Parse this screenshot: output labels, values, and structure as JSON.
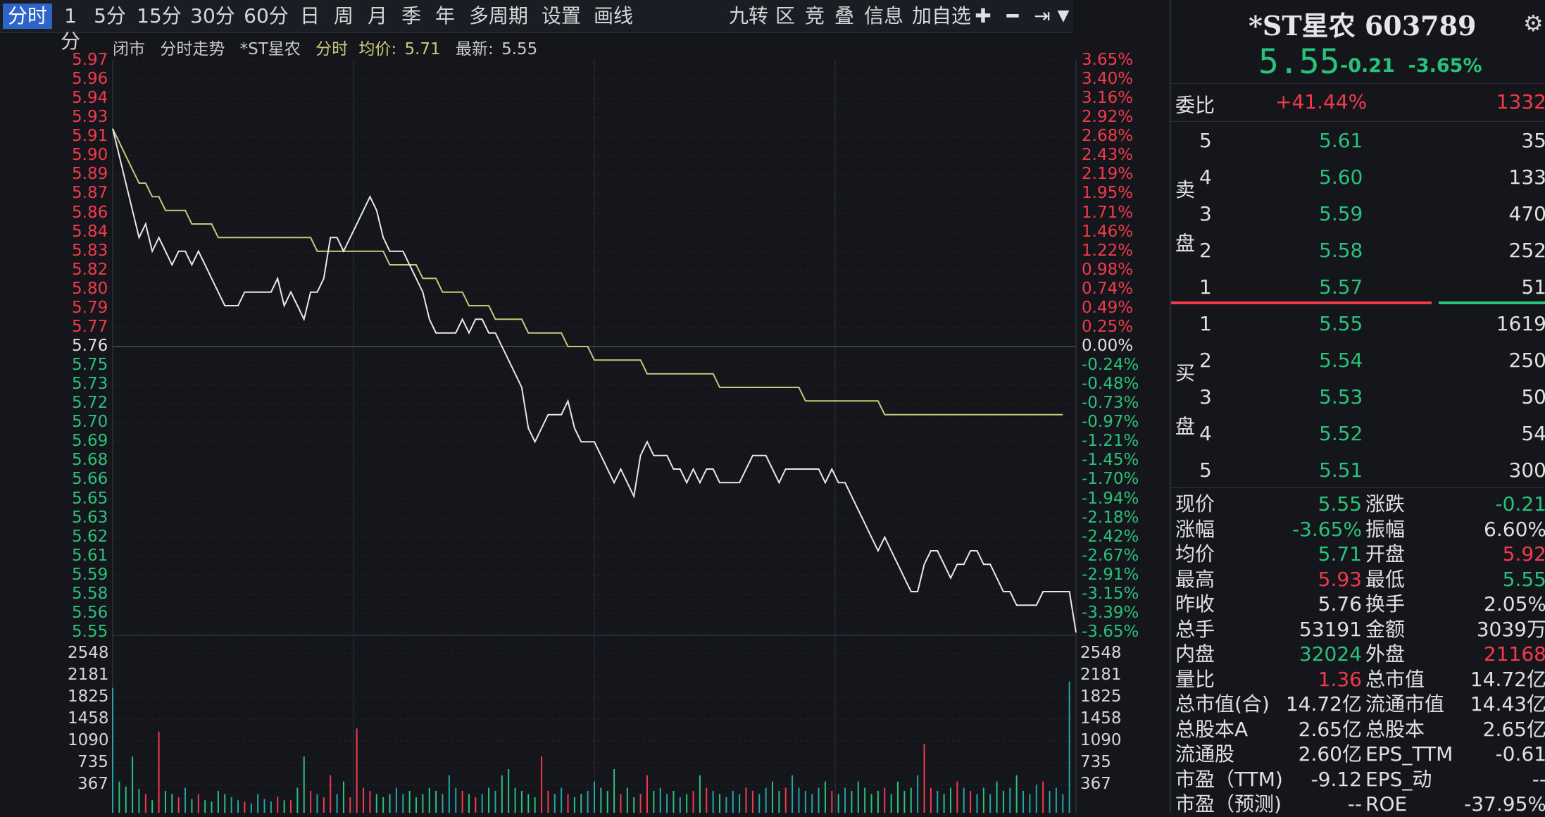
{
  "toolbar": {
    "periods": [
      "分时",
      "1分",
      "5分",
      "15分",
      "30分",
      "60分",
      "日",
      "周",
      "月",
      "季",
      "年",
      "多周期",
      "设置",
      "画线"
    ],
    "active": "分时",
    "tools": [
      "九转",
      "区",
      "竞",
      "叠",
      "信息",
      "加自选"
    ]
  },
  "chart": {
    "status": "闭市",
    "mode_label": "分时走势",
    "stock_label": "*ST星农",
    "type_label": "分时",
    "avg_label": "均价:",
    "avg_value": "5.71",
    "latest_label": "最新:",
    "latest_value": "5.55"
  },
  "chart_data": {
    "type": "line",
    "price_ticks": [
      "5.97",
      "5.96",
      "5.94",
      "5.93",
      "5.91",
      "5.90",
      "5.89",
      "5.87",
      "5.86",
      "5.84",
      "5.83",
      "5.82",
      "5.80",
      "5.79",
      "5.77",
      "5.76",
      "5.75",
      "5.73",
      "5.72",
      "5.70",
      "5.69",
      "5.68",
      "5.66",
      "5.65",
      "5.63",
      "5.62",
      "5.61",
      "5.59",
      "5.58",
      "5.56",
      "5.55"
    ],
    "pct_ticks": [
      "3.65%",
      "3.40%",
      "3.16%",
      "2.92%",
      "2.68%",
      "2.43%",
      "2.19%",
      "1.95%",
      "1.71%",
      "1.46%",
      "1.22%",
      "0.98%",
      "0.74%",
      "0.49%",
      "0.25%",
      "0.00%",
      "-0.24%",
      "-0.48%",
      "-0.73%",
      "-0.97%",
      "-1.21%",
      "-1.45%",
      "-1.70%",
      "-1.94%",
      "-2.18%",
      "-2.42%",
      "-2.67%",
      "-2.91%",
      "-3.15%",
      "-3.39%",
      "-3.65%"
    ],
    "prev_close": 5.76,
    "y_range": [
      5.55,
      5.97
    ],
    "volume_ticks": [
      "2548",
      "2181",
      "1825",
      "1458",
      "1090",
      "735",
      "367"
    ],
    "volume_max": 2548,
    "colors": {
      "up": "#f23a4c",
      "down": "#29c27a",
      "neutral": "#e0e0e0",
      "price_line": "#e8e8e8",
      "avg_line": "#c8c87a",
      "volume": "#1fa7a7"
    },
    "price": [
      5.92,
      5.9,
      5.88,
      5.86,
      5.84,
      5.85,
      5.83,
      5.84,
      5.83,
      5.82,
      5.83,
      5.83,
      5.82,
      5.83,
      5.82,
      5.81,
      5.8,
      5.79,
      5.79,
      5.79,
      5.8,
      5.8,
      5.8,
      5.8,
      5.8,
      5.81,
      5.79,
      5.8,
      5.79,
      5.78,
      5.8,
      5.8,
      5.81,
      5.84,
      5.84,
      5.83,
      5.84,
      5.85,
      5.86,
      5.87,
      5.86,
      5.84,
      5.83,
      5.83,
      5.83,
      5.82,
      5.81,
      5.8,
      5.78,
      5.77,
      5.77,
      5.77,
      5.77,
      5.78,
      5.77,
      5.78,
      5.78,
      5.77,
      5.77,
      5.76,
      5.75,
      5.74,
      5.73,
      5.7,
      5.69,
      5.7,
      5.71,
      5.71,
      5.71,
      5.72,
      5.7,
      5.69,
      5.69,
      5.69,
      5.68,
      5.67,
      5.66,
      5.67,
      5.66,
      5.65,
      5.68,
      5.69,
      5.68,
      5.68,
      5.68,
      5.67,
      5.67,
      5.66,
      5.67,
      5.66,
      5.67,
      5.67,
      5.66,
      5.66,
      5.66,
      5.66,
      5.67,
      5.68,
      5.68,
      5.68,
      5.67,
      5.66,
      5.67,
      5.67,
      5.67,
      5.67,
      5.67,
      5.67,
      5.66,
      5.67,
      5.66,
      5.66,
      5.65,
      5.64,
      5.63,
      5.62,
      5.61,
      5.62,
      5.61,
      5.6,
      5.59,
      5.58,
      5.58,
      5.6,
      5.61,
      5.61,
      5.6,
      5.59,
      5.6,
      5.6,
      5.61,
      5.61,
      5.6,
      5.6,
      5.59,
      5.58,
      5.58,
      5.57,
      5.57,
      5.57,
      5.57,
      5.58,
      5.58,
      5.58,
      5.58,
      5.58,
      5.55
    ],
    "avg": [
      5.92,
      5.91,
      5.9,
      5.89,
      5.88,
      5.88,
      5.87,
      5.87,
      5.86,
      5.86,
      5.86,
      5.86,
      5.85,
      5.85,
      5.85,
      5.85,
      5.84,
      5.84,
      5.84,
      5.84,
      5.84,
      5.84,
      5.84,
      5.84,
      5.84,
      5.84,
      5.84,
      5.84,
      5.84,
      5.84,
      5.84,
      5.83,
      5.83,
      5.83,
      5.83,
      5.83,
      5.83,
      5.83,
      5.83,
      5.83,
      5.83,
      5.83,
      5.82,
      5.82,
      5.82,
      5.82,
      5.82,
      5.81,
      5.81,
      5.81,
      5.8,
      5.8,
      5.8,
      5.8,
      5.79,
      5.79,
      5.79,
      5.79,
      5.78,
      5.78,
      5.78,
      5.78,
      5.78,
      5.77,
      5.77,
      5.77,
      5.77,
      5.77,
      5.77,
      5.76,
      5.76,
      5.76,
      5.76,
      5.75,
      5.75,
      5.75,
      5.75,
      5.75,
      5.75,
      5.75,
      5.75,
      5.74,
      5.74,
      5.74,
      5.74,
      5.74,
      5.74,
      5.74,
      5.74,
      5.74,
      5.74,
      5.74,
      5.73,
      5.73,
      5.73,
      5.73,
      5.73,
      5.73,
      5.73,
      5.73,
      5.73,
      5.73,
      5.73,
      5.73,
      5.73,
      5.72,
      5.72,
      5.72,
      5.72,
      5.72,
      5.72,
      5.72,
      5.72,
      5.72,
      5.72,
      5.72,
      5.72,
      5.71,
      5.71,
      5.71,
      5.71,
      5.71,
      5.71,
      5.71,
      5.71,
      5.71,
      5.71,
      5.71,
      5.71,
      5.71,
      5.71,
      5.71,
      5.71,
      5.71,
      5.71,
      5.71,
      5.71,
      5.71,
      5.71,
      5.71,
      5.71,
      5.71,
      5.71,
      5.71,
      5.71
    ],
    "volume": [
      2000,
      500,
      420,
      900,
      380,
      300,
      200,
      1300,
      350,
      300,
      250,
      400,
      220,
      300,
      200,
      180,
      350,
      300,
      250,
      200,
      180,
      150,
      300,
      220,
      180,
      260,
      200,
      200,
      400,
      900,
      350,
      300,
      250,
      600,
      300,
      500,
      250,
      1350,
      400,
      350,
      300,
      250,
      300,
      400,
      300,
      350,
      250,
      300,
      400,
      350,
      300,
      600,
      400,
      350,
      300,
      250,
      300,
      400,
      350,
      600,
      700,
      400,
      350,
      300,
      250,
      900,
      350,
      300,
      400,
      300,
      250,
      300,
      350,
      500,
      400,
      350,
      700,
      300,
      400,
      250,
      300,
      600,
      350,
      400,
      300,
      350,
      250,
      300,
      350,
      600,
      400,
      350,
      300,
      250,
      350,
      300,
      400,
      350,
      300,
      400,
      500,
      350,
      400,
      600,
      400,
      350,
      300,
      400,
      500,
      350,
      300,
      400,
      350,
      500,
      400,
      300,
      350,
      400,
      300,
      500,
      350,
      400,
      600,
      1100,
      400,
      350,
      300,
      400,
      500,
      400,
      350,
      300,
      400,
      300,
      500,
      350,
      400,
      600,
      350,
      300,
      450,
      500,
      350,
      400,
      300,
      2100
    ]
  },
  "panel": {
    "title": "*ST星农 603789",
    "price": "5.55",
    "change": "-0.21",
    "change_pct": "-3.65%",
    "wb_label": "委比",
    "wb_pct": "+41.44%",
    "wb_vol": "1332",
    "sell_label": [
      "卖",
      "盘"
    ],
    "buy_label": [
      "买",
      "盘"
    ],
    "asks": [
      {
        "lvl": "5",
        "price": "5.61",
        "vol": "35"
      },
      {
        "lvl": "4",
        "price": "5.60",
        "vol": "133"
      },
      {
        "lvl": "3",
        "price": "5.59",
        "vol": "470"
      },
      {
        "lvl": "2",
        "price": "5.58",
        "vol": "252"
      },
      {
        "lvl": "1",
        "price": "5.57",
        "vol": "51"
      }
    ],
    "bids": [
      {
        "lvl": "1",
        "price": "5.55",
        "vol": "1619"
      },
      {
        "lvl": "2",
        "price": "5.54",
        "vol": "250"
      },
      {
        "lvl": "3",
        "price": "5.53",
        "vol": "50"
      },
      {
        "lvl": "4",
        "price": "5.52",
        "vol": "54"
      },
      {
        "lvl": "5",
        "price": "5.51",
        "vol": "300"
      }
    ],
    "stats": [
      {
        "l1": "现价",
        "v1": "5.55",
        "c1": "green",
        "l2": "涨跌",
        "v2": "-0.21",
        "c2": "green"
      },
      {
        "l1": "涨幅",
        "v1": "-3.65%",
        "c1": "green",
        "l2": "振幅",
        "v2": "6.60%",
        "c2": "white"
      },
      {
        "l1": "均价",
        "v1": "5.71",
        "c1": "green",
        "l2": "开盘",
        "v2": "5.92",
        "c2": "red"
      },
      {
        "l1": "最高",
        "v1": "5.93",
        "c1": "red",
        "l2": "最低",
        "v2": "5.55",
        "c2": "green"
      },
      {
        "l1": "昨收",
        "v1": "5.76",
        "c1": "white",
        "l2": "换手",
        "v2": "2.05%",
        "c2": "white"
      },
      {
        "l1": "总手",
        "v1": "53191",
        "c1": "white",
        "l2": "金额",
        "v2": "3039万",
        "c2": "white"
      },
      {
        "l1": "内盘",
        "v1": "32024",
        "c1": "green",
        "l2": "外盘",
        "v2": "21168",
        "c2": "red"
      },
      {
        "l1": "量比",
        "v1": "1.36",
        "c1": "red",
        "l2": "总市值",
        "v2": "14.72亿",
        "c2": "white"
      },
      {
        "l1": "总市值(合)",
        "v1": "14.72亿",
        "c1": "white",
        "l2": "流通市值",
        "v2": "14.43亿",
        "c2": "white"
      },
      {
        "l1": "总股本A",
        "v1": "2.65亿",
        "c1": "white",
        "l2": "总股本",
        "v2": "2.65亿",
        "c2": "white"
      },
      {
        "l1": "流通股",
        "v1": "2.60亿",
        "c1": "white",
        "l2": "EPS_TTM",
        "v2": "-0.61",
        "c2": "white"
      },
      {
        "l1": "市盈（TTM)",
        "v1": "-9.12",
        "c1": "white",
        "l2": "EPS_动",
        "v2": "--",
        "c2": "white"
      },
      {
        "l1": "市盈（预测)",
        "v1": "--",
        "c1": "white",
        "l2": "ROE",
        "v2": "-37.95%",
        "c2": "white"
      }
    ]
  }
}
